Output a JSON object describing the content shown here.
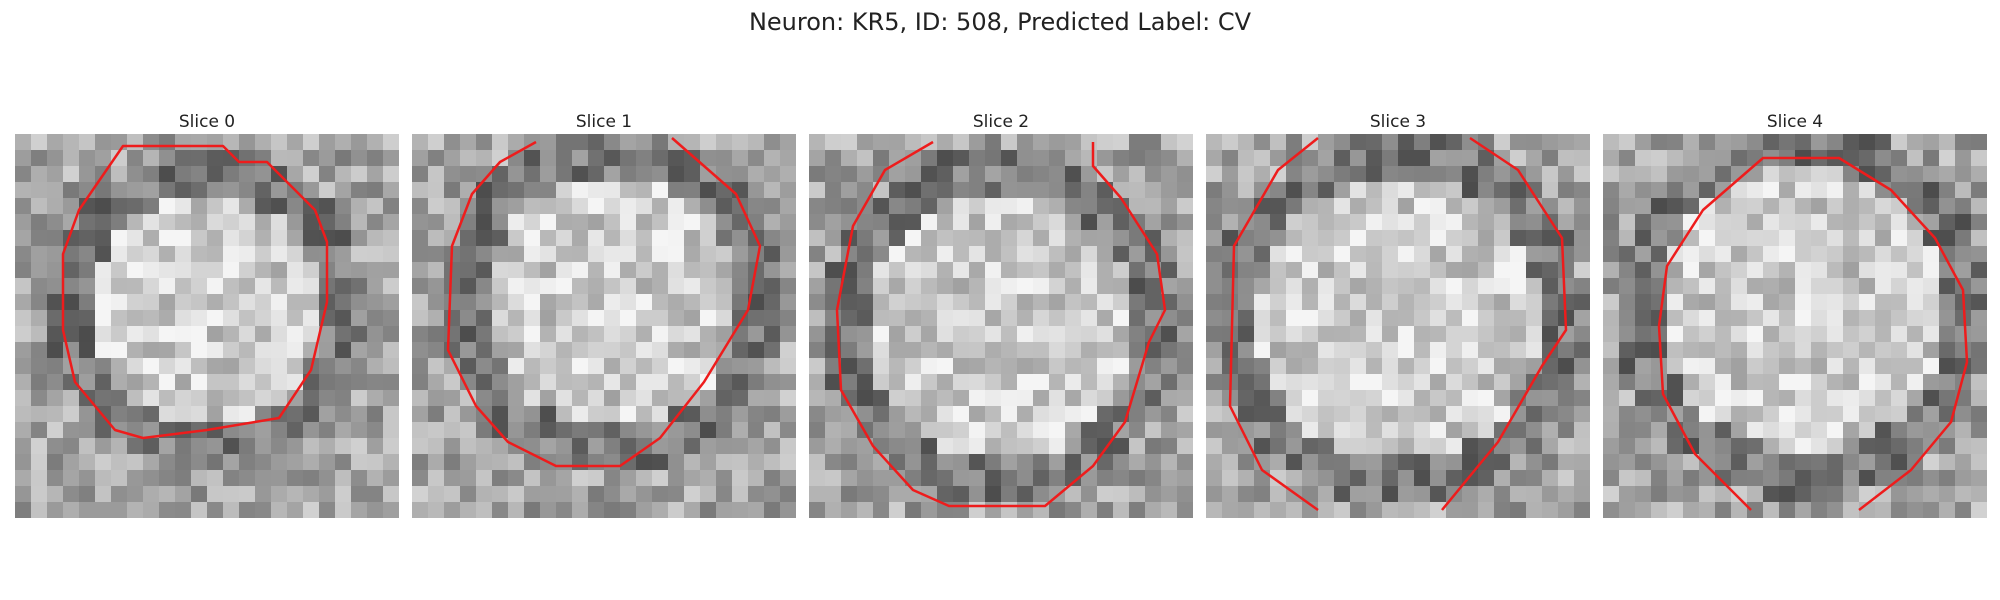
{
  "figure": {
    "title": "Neuron: KR5, ID: 508, Predicted Label: CV"
  },
  "slices": [
    {
      "label": "Slice 0"
    },
    {
      "label": "Slice 1"
    },
    {
      "label": "Slice 2"
    },
    {
      "label": "Slice 3"
    },
    {
      "label": "Slice 4"
    }
  ],
  "colors": {
    "contour": "#ee1c1c",
    "background": "#ffffff"
  }
}
